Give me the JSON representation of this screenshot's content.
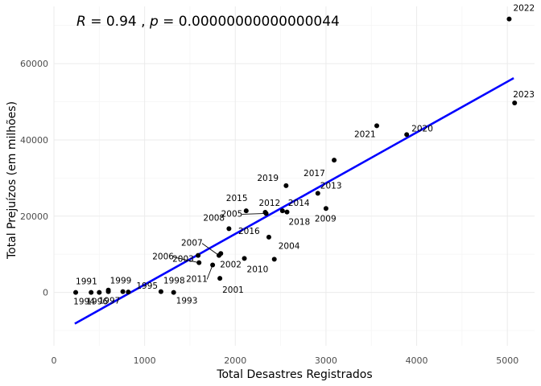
{
  "chart_data": {
    "type": "scatter",
    "xlabel": "Total Desastres Registrados",
    "ylabel": "Total Prejuízos (em milhões)",
    "annotation": {
      "r_symbol": "R",
      "r_value": " = 0.94",
      "separator": " , ",
      "p_symbol": "p",
      "p_value": " = 0.00000000000000044"
    },
    "xlim": [
      0,
      5300
    ],
    "ylim": [
      -14000,
      75000
    ],
    "x_ticks": [
      0,
      1000,
      2000,
      3000,
      4000,
      5000
    ],
    "y_ticks": [
      0,
      20000,
      40000,
      60000
    ],
    "grid": true,
    "fit_line": {
      "color": "#0000ff",
      "x": [
        230,
        5070
      ],
      "y": [
        -8200,
        56200
      ]
    },
    "points": [
      {
        "label": "1991",
        "x": 240,
        "y": 0
      },
      {
        "label": "1994",
        "x": 410,
        "y": 0
      },
      {
        "label": "1996",
        "x": 500,
        "y": 0
      },
      {
        "label": "1997",
        "x": 600,
        "y": 200
      },
      {
        "label": "1999",
        "x": 760,
        "y": 200
      },
      {
        "label": "1995",
        "x": 820,
        "y": 100
      },
      {
        "label": "1998",
        "x": 1180,
        "y": 200
      },
      {
        "label": "1993",
        "x": 1320,
        "y": 0
      },
      {
        "label": "2000",
        "x": 600,
        "y": 600
      },
      {
        "label": "2006",
        "x": 1600,
        "y": 7800
      },
      {
        "label": "2003",
        "x": 1590,
        "y": 9700
      },
      {
        "label": "2007",
        "x": 1820,
        "y": 9700
      },
      {
        "label": "2002",
        "x": 1840,
        "y": 10200
      },
      {
        "label": "2011",
        "x": 1750,
        "y": 7200
      },
      {
        "label": "2001",
        "x": 1830,
        "y": 3700
      },
      {
        "label": "2008",
        "x": 1930,
        "y": 16700
      },
      {
        "label": "2010",
        "x": 2100,
        "y": 8900
      },
      {
        "label": "2004",
        "x": 2430,
        "y": 8700
      },
      {
        "label": "2005",
        "x": 2340,
        "y": 20700
      },
      {
        "label": "2012",
        "x": 2330,
        "y": 21000
      },
      {
        "label": "2015",
        "x": 2120,
        "y": 21400
      },
      {
        "label": "2016",
        "x": 2370,
        "y": 14500
      },
      {
        "label": "2014",
        "x": 2520,
        "y": 21400
      },
      {
        "label": "2018",
        "x": 2570,
        "y": 21100
      },
      {
        "label": "2019",
        "x": 2560,
        "y": 28000
      },
      {
        "label": "2013",
        "x": 2910,
        "y": 26000
      },
      {
        "label": "2009",
        "x": 3000,
        "y": 22000
      },
      {
        "label": "2017",
        "x": 3090,
        "y": 34700
      },
      {
        "label": "2021",
        "x": 3560,
        "y": 43700
      },
      {
        "label": "2020",
        "x": 3890,
        "y": 41400
      },
      {
        "label": "2022",
        "x": 5020,
        "y": 71700
      },
      {
        "label": "2023",
        "x": 5080,
        "y": 49700
      }
    ]
  }
}
